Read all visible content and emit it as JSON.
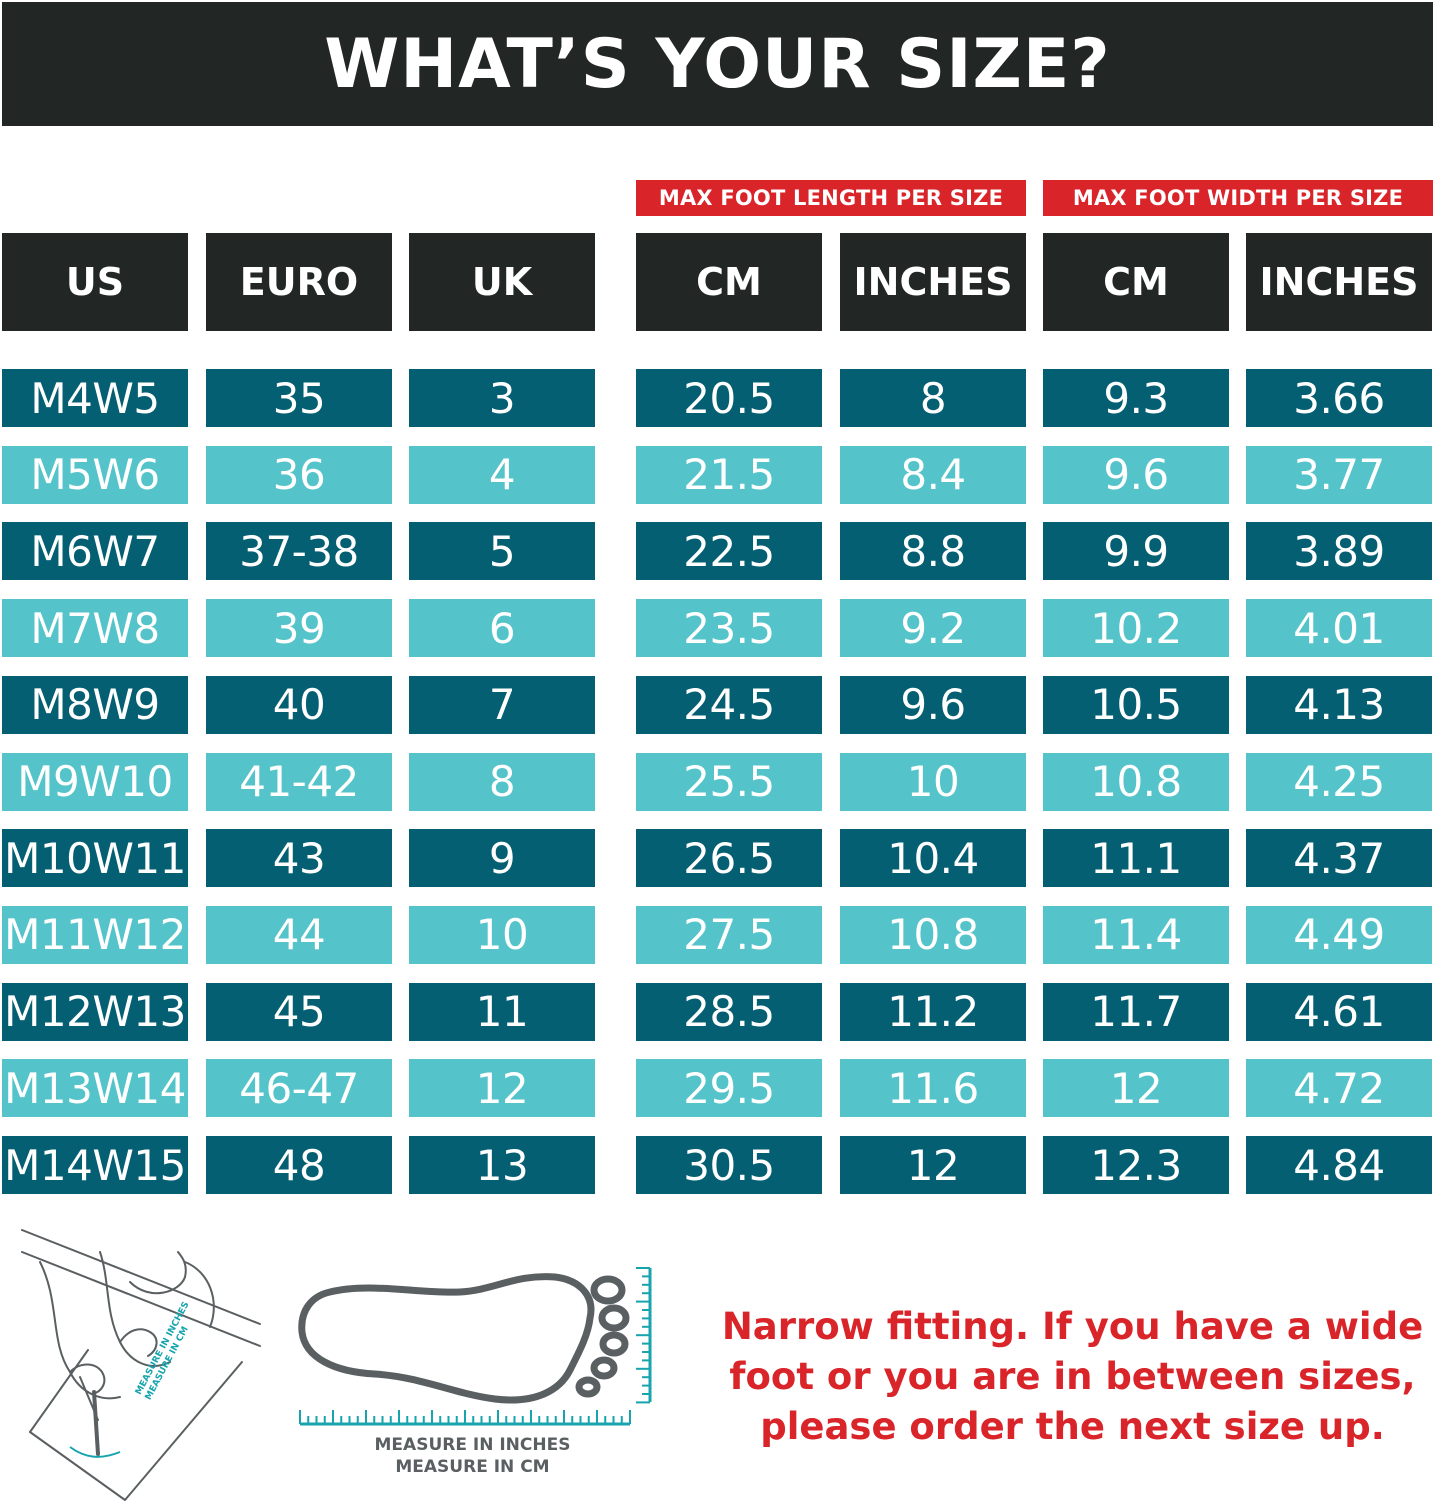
{
  "title": "WHAT’S YOUR SIZE?",
  "groups": {
    "length": "MAX FOOT LENGTH PER SIZE",
    "width": "MAX FOOT WIDTH PER SIZE"
  },
  "columns": [
    "US",
    "EURO",
    "UK",
    "CM",
    "INCHES",
    "CM",
    "INCHES"
  ],
  "rows": [
    [
      "M4W5",
      "35",
      "3",
      "20.5",
      "8",
      "9.3",
      "3.66"
    ],
    [
      "M5W6",
      "36",
      "4",
      "21.5",
      "8.4",
      "9.6",
      "3.77"
    ],
    [
      "M6W7",
      "37-38",
      "5",
      "22.5",
      "8.8",
      "9.9",
      "3.89"
    ],
    [
      "M7W8",
      "39",
      "6",
      "23.5",
      "9.2",
      "10.2",
      "4.01"
    ],
    [
      "M8W9",
      "40",
      "7",
      "24.5",
      "9.6",
      "10.5",
      "4.13"
    ],
    [
      "M9W10",
      "41-42",
      "8",
      "25.5",
      "10",
      "10.8",
      "4.25"
    ],
    [
      "M10W11",
      "43",
      "9",
      "26.5",
      "10.4",
      "11.1",
      "4.37"
    ],
    [
      "M11W12",
      "44",
      "10",
      "27.5",
      "10.8",
      "11.4",
      "4.49"
    ],
    [
      "M12W13",
      "45",
      "11",
      "28.5",
      "11.2",
      "11.7",
      "4.61"
    ],
    [
      "M13W14",
      "46-47",
      "12",
      "29.5",
      "11.6",
      "12",
      "4.72"
    ],
    [
      "M14W15",
      "48",
      "13",
      "30.5",
      "12",
      "12.3",
      "4.84"
    ]
  ],
  "measure": {
    "line1": "MEASURE IN INCHES",
    "line2": "MEASURE IN CM"
  },
  "note": "Narrow fitting. If you have a wide foot or you are in between sizes, please order the next size up.",
  "colors": {
    "dark_header": "#222726",
    "accent_red": "#d9242a",
    "row_dark": "#055f72",
    "row_light": "#54c4ca"
  }
}
